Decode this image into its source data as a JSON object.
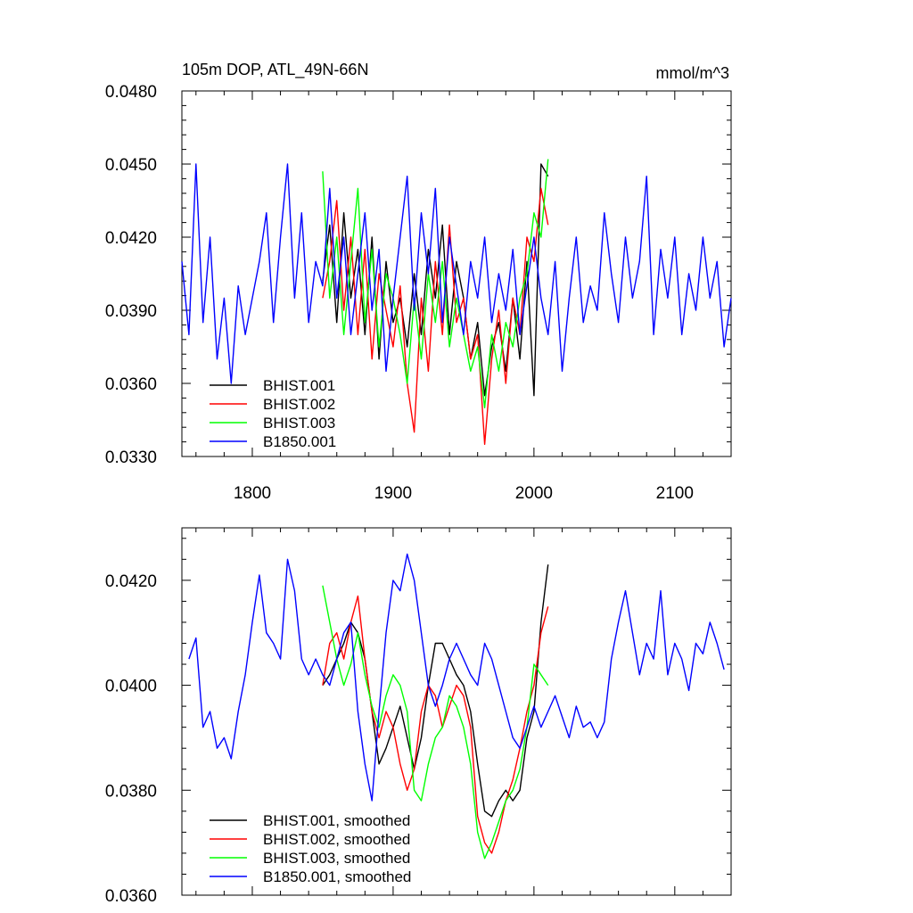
{
  "colors": {
    "BHIST.001": "#000000",
    "BHIST.002": "#ff0000",
    "BHIST.003": "#00ff00",
    "B1850.001": "#0000ff"
  },
  "chart_data": [
    {
      "type": "line",
      "title": "105m DOP, ATL_49N-66N",
      "units_label": "mmol/m^3",
      "xlim": [
        1750,
        2140
      ],
      "ylim": [
        0.033,
        0.048
      ],
      "xticks": [
        1800,
        1900,
        2000,
        2100
      ],
      "xtick_labels": [
        "1800",
        "1900",
        "2000",
        "2100"
      ],
      "yticks": [
        0.033,
        0.036,
        0.039,
        0.042,
        0.045,
        0.048
      ],
      "ytick_labels": [
        "0.0330",
        "0.0360",
        "0.0390",
        "0.0420",
        "0.0450",
        "0.0480"
      ],
      "legend_position": "bottom-left",
      "series": [
        {
          "name": "BHIST.001",
          "color_key": "BHIST.001",
          "x": [
            1850,
            1855,
            1860,
            1865,
            1870,
            1875,
            1880,
            1885,
            1890,
            1895,
            1900,
            1905,
            1910,
            1915,
            1920,
            1925,
            1930,
            1935,
            1940,
            1945,
            1950,
            1955,
            1960,
            1965,
            1970,
            1975,
            1980,
            1985,
            1990,
            1995,
            2000,
            2005,
            2010
          ],
          "y": [
            0.0402,
            0.0425,
            0.0385,
            0.043,
            0.0395,
            0.0415,
            0.038,
            0.042,
            0.037,
            0.041,
            0.0385,
            0.0395,
            0.0375,
            0.0405,
            0.038,
            0.0415,
            0.0395,
            0.0425,
            0.038,
            0.041,
            0.0395,
            0.037,
            0.0385,
            0.0355,
            0.0375,
            0.0385,
            0.0365,
            0.0395,
            0.037,
            0.041,
            0.0355,
            0.045,
            0.0445
          ]
        },
        {
          "name": "BHIST.002",
          "color_key": "BHIST.002",
          "x": [
            1850,
            1855,
            1860,
            1865,
            1870,
            1875,
            1880,
            1885,
            1890,
            1895,
            1900,
            1905,
            1910,
            1915,
            1920,
            1925,
            1930,
            1935,
            1940,
            1945,
            1950,
            1955,
            1960,
            1965,
            1970,
            1975,
            1980,
            1985,
            1990,
            1995,
            2000,
            2005,
            2010
          ],
          "y": [
            0.0395,
            0.041,
            0.0435,
            0.039,
            0.042,
            0.038,
            0.0415,
            0.037,
            0.0405,
            0.039,
            0.0375,
            0.04,
            0.036,
            0.034,
            0.0395,
            0.0365,
            0.041,
            0.038,
            0.0425,
            0.0385,
            0.0395,
            0.037,
            0.038,
            0.0335,
            0.037,
            0.039,
            0.036,
            0.0395,
            0.038,
            0.042,
            0.041,
            0.044,
            0.0425
          ]
        },
        {
          "name": "BHIST.003",
          "color_key": "BHIST.003",
          "x": [
            1850,
            1855,
            1860,
            1865,
            1870,
            1875,
            1880,
            1885,
            1890,
            1895,
            1900,
            1905,
            1910,
            1915,
            1920,
            1925,
            1930,
            1935,
            1940,
            1945,
            1950,
            1955,
            1960,
            1965,
            1970,
            1975,
            1980,
            1985,
            1990,
            1995,
            2000,
            2005,
            2010
          ],
          "y": [
            0.0447,
            0.0395,
            0.042,
            0.038,
            0.041,
            0.044,
            0.0385,
            0.0415,
            0.0375,
            0.0405,
            0.0395,
            0.038,
            0.036,
            0.0395,
            0.037,
            0.0405,
            0.0385,
            0.041,
            0.0375,
            0.0395,
            0.038,
            0.0365,
            0.0375,
            0.035,
            0.038,
            0.0365,
            0.0385,
            0.0375,
            0.0395,
            0.0405,
            0.043,
            0.042,
            0.0452
          ]
        },
        {
          "name": "B1850.001",
          "color_key": "B1850.001",
          "x": [
            1750,
            1755,
            1760,
            1765,
            1770,
            1775,
            1780,
            1785,
            1790,
            1795,
            1800,
            1805,
            1810,
            1815,
            1820,
            1825,
            1830,
            1835,
            1840,
            1845,
            1850,
            1855,
            1860,
            1865,
            1870,
            1875,
            1880,
            1885,
            1890,
            1895,
            1900,
            1905,
            1910,
            1915,
            1920,
            1925,
            1930,
            1935,
            1940,
            1945,
            1950,
            1955,
            1960,
            1965,
            1970,
            1975,
            1980,
            1985,
            1990,
            1995,
            2000,
            2005,
            2010,
            2015,
            2020,
            2025,
            2030,
            2035,
            2040,
            2045,
            2050,
            2055,
            2060,
            2065,
            2070,
            2075,
            2080,
            2085,
            2090,
            2095,
            2100,
            2105,
            2110,
            2115,
            2120,
            2125,
            2130,
            2135,
            2140
          ],
          "y": [
            0.041,
            0.038,
            0.045,
            0.0385,
            0.042,
            0.037,
            0.0395,
            0.036,
            0.04,
            0.038,
            0.0395,
            0.041,
            0.043,
            0.0385,
            0.042,
            0.045,
            0.0395,
            0.043,
            0.0385,
            0.041,
            0.04,
            0.044,
            0.0395,
            0.042,
            0.038,
            0.0405,
            0.043,
            0.039,
            0.0415,
            0.0365,
            0.0395,
            0.042,
            0.0445,
            0.039,
            0.043,
            0.0405,
            0.044,
            0.0385,
            0.042,
            0.04,
            0.038,
            0.041,
            0.0395,
            0.042,
            0.0385,
            0.0405,
            0.039,
            0.0415,
            0.038,
            0.04,
            0.042,
            0.0395,
            0.038,
            0.041,
            0.0365,
            0.0395,
            0.042,
            0.0385,
            0.04,
            0.039,
            0.043,
            0.0405,
            0.0385,
            0.042,
            0.0395,
            0.041,
            0.0445,
            0.038,
            0.0415,
            0.0395,
            0.042,
            0.038,
            0.0405,
            0.039,
            0.042,
            0.0395,
            0.041,
            0.0375,
            0.0395
          ]
        }
      ]
    },
    {
      "type": "line",
      "xlim": [
        1750,
        2140
      ],
      "ylim": [
        0.036,
        0.043
      ],
      "xticks": [
        1800,
        1900,
        2000,
        2100
      ],
      "yticks": [
        0.036,
        0.038,
        0.04,
        0.042
      ],
      "ytick_labels": [
        "0.0360",
        "0.0380",
        "0.0400",
        "0.0420"
      ],
      "legend_position": "bottom-left",
      "series": [
        {
          "name": "BHIST.001, smoothed",
          "color_key": "BHIST.001",
          "x": [
            1850,
            1855,
            1860,
            1865,
            1870,
            1875,
            1880,
            1885,
            1890,
            1895,
            1900,
            1905,
            1910,
            1915,
            1920,
            1925,
            1930,
            1935,
            1940,
            1945,
            1950,
            1955,
            1960,
            1965,
            1970,
            1975,
            1980,
            1985,
            1990,
            1995,
            2000,
            2005,
            2010
          ],
          "y": [
            0.04,
            0.0402,
            0.0405,
            0.0408,
            0.0412,
            0.041,
            0.0405,
            0.0395,
            0.0385,
            0.0388,
            0.0392,
            0.0396,
            0.039,
            0.0384,
            0.039,
            0.04,
            0.0408,
            0.0408,
            0.0405,
            0.0402,
            0.04,
            0.0395,
            0.0385,
            0.0376,
            0.0375,
            0.0378,
            0.038,
            0.0378,
            0.038,
            0.039,
            0.0395,
            0.0412,
            0.0423
          ]
        },
        {
          "name": "BHIST.002, smoothed",
          "color_key": "BHIST.002",
          "x": [
            1850,
            1855,
            1860,
            1865,
            1870,
            1875,
            1880,
            1885,
            1890,
            1895,
            1900,
            1905,
            1910,
            1915,
            1920,
            1925,
            1930,
            1935,
            1940,
            1945,
            1950,
            1955,
            1960,
            1965,
            1970,
            1975,
            1980,
            1985,
            1990,
            1995,
            2000,
            2005,
            2010
          ],
          "y": [
            0.04,
            0.0408,
            0.041,
            0.0405,
            0.0412,
            0.0417,
            0.0405,
            0.0395,
            0.039,
            0.0395,
            0.0392,
            0.0385,
            0.038,
            0.0384,
            0.0395,
            0.04,
            0.0398,
            0.0392,
            0.0396,
            0.04,
            0.0398,
            0.0392,
            0.0375,
            0.037,
            0.0368,
            0.0372,
            0.0378,
            0.0382,
            0.0388,
            0.0395,
            0.04,
            0.041,
            0.0415
          ]
        },
        {
          "name": "BHIST.003, smoothed",
          "color_key": "BHIST.003",
          "x": [
            1850,
            1855,
            1860,
            1865,
            1870,
            1875,
            1880,
            1885,
            1890,
            1895,
            1900,
            1905,
            1910,
            1915,
            1920,
            1925,
            1930,
            1935,
            1940,
            1945,
            1950,
            1955,
            1960,
            1965,
            1970,
            1975,
            1980,
            1985,
            1990,
            1995,
            2000,
            2005,
            2010
          ],
          "y": [
            0.0419,
            0.0412,
            0.0405,
            0.04,
            0.0404,
            0.041,
            0.0402,
            0.0396,
            0.0392,
            0.0398,
            0.0402,
            0.04,
            0.0395,
            0.038,
            0.0378,
            0.0385,
            0.039,
            0.0392,
            0.0398,
            0.0396,
            0.0392,
            0.0385,
            0.0372,
            0.0367,
            0.037,
            0.0374,
            0.0378,
            0.038,
            0.0384,
            0.0392,
            0.0404,
            0.0402,
            0.04
          ]
        },
        {
          "name": "B1850.001, smoothed",
          "color_key": "B1850.001",
          "x": [
            1755,
            1760,
            1765,
            1770,
            1775,
            1780,
            1785,
            1790,
            1795,
            1800,
            1805,
            1810,
            1815,
            1820,
            1825,
            1830,
            1835,
            1840,
            1845,
            1850,
            1855,
            1860,
            1865,
            1870,
            1875,
            1880,
            1885,
            1890,
            1895,
            1900,
            1905,
            1910,
            1915,
            1920,
            1925,
            1930,
            1935,
            1940,
            1945,
            1950,
            1955,
            1960,
            1965,
            1970,
            1975,
            1980,
            1985,
            1990,
            1995,
            2000,
            2005,
            2010,
            2015,
            2020,
            2025,
            2030,
            2035,
            2040,
            2045,
            2050,
            2055,
            2060,
            2065,
            2070,
            2075,
            2080,
            2085,
            2090,
            2095,
            2100,
            2105,
            2110,
            2115,
            2120,
            2125,
            2130,
            2135
          ],
          "y": [
            0.0405,
            0.0409,
            0.0392,
            0.0395,
            0.0388,
            0.039,
            0.0386,
            0.0395,
            0.0402,
            0.0412,
            0.0421,
            0.041,
            0.0408,
            0.0405,
            0.0424,
            0.0418,
            0.0405,
            0.0402,
            0.0405,
            0.0402,
            0.04,
            0.0405,
            0.041,
            0.0412,
            0.0395,
            0.0385,
            0.0378,
            0.0395,
            0.041,
            0.042,
            0.0418,
            0.0425,
            0.042,
            0.041,
            0.04,
            0.0396,
            0.04,
            0.0405,
            0.0408,
            0.0405,
            0.0402,
            0.04,
            0.0408,
            0.0405,
            0.04,
            0.0395,
            0.039,
            0.0388,
            0.0392,
            0.0396,
            0.0392,
            0.0395,
            0.0398,
            0.0394,
            0.039,
            0.0396,
            0.0392,
            0.0393,
            0.039,
            0.0393,
            0.0405,
            0.0412,
            0.0418,
            0.041,
            0.0402,
            0.0408,
            0.0405,
            0.0418,
            0.0402,
            0.0408,
            0.0405,
            0.0399,
            0.0408,
            0.0406,
            0.0412,
            0.0408,
            0.0403
          ]
        }
      ]
    }
  ]
}
